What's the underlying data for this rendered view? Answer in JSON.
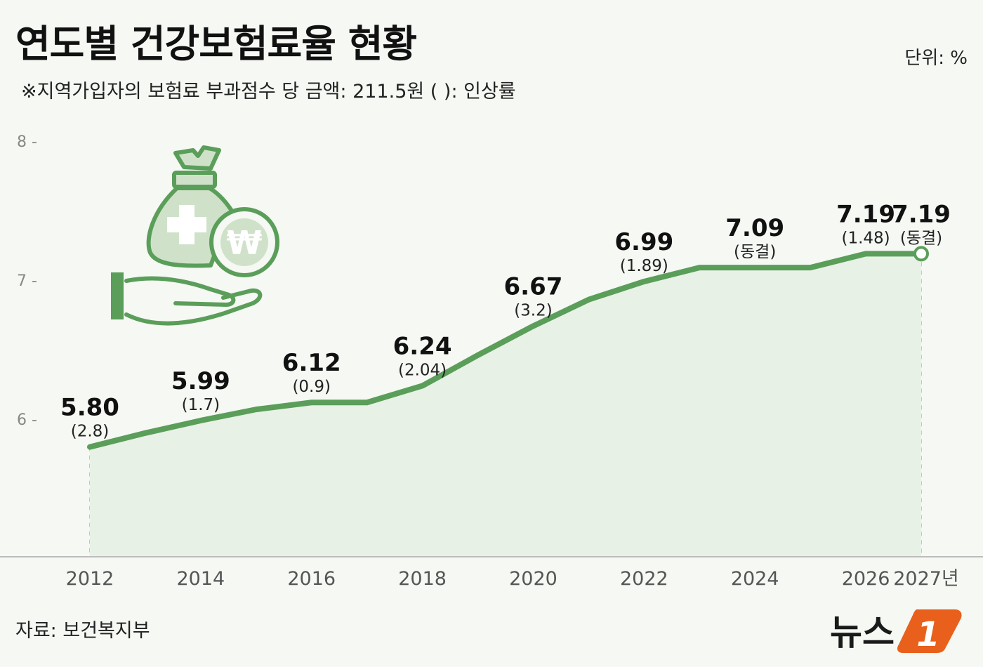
{
  "title": "연도별 건강보험료율 현황",
  "unit": "단위: %",
  "subtitle": "※지역가입자의 보험료 부과점수 당 금액: 211.5원  ( ): 인상률",
  "source": "자료: 보건복지부",
  "logo": {
    "text": "뉴스",
    "mark": "1"
  },
  "colors": {
    "line": "#5a9e5a",
    "fill": "#e8f1e6",
    "accent": "#e8601c"
  },
  "chart_data": {
    "type": "line",
    "title": "연도별 건강보험료율 현황",
    "ylim": [
      5.0,
      8.0
    ],
    "yticks": [
      6,
      7,
      8
    ],
    "ytick_labels": [
      "6 -",
      "7 -",
      "8 -"
    ],
    "x": [
      2012,
      2013,
      2014,
      2015,
      2016,
      2017,
      2018,
      2019,
      2020,
      2021,
      2022,
      2023,
      2024,
      2025,
      2026,
      2027
    ],
    "y": [
      5.8,
      5.9,
      5.99,
      6.07,
      6.12,
      6.12,
      6.24,
      6.46,
      6.67,
      6.86,
      6.99,
      7.09,
      7.09,
      7.09,
      7.19,
      7.19
    ],
    "xtick_years": [
      2012,
      2014,
      2016,
      2018,
      2020,
      2022,
      2024,
      2026,
      2027
    ],
    "xtick_labels": [
      "2012",
      "2014",
      "2016",
      "2018",
      "2020",
      "2022",
      "2024",
      "2026",
      "2027년"
    ],
    "labels": [
      {
        "x": 2012,
        "value": "5.80",
        "rate": "(2.8)"
      },
      {
        "x": 2014,
        "value": "5.99",
        "rate": "(1.7)"
      },
      {
        "x": 2016,
        "value": "6.12",
        "rate": "(0.9)"
      },
      {
        "x": 2018,
        "value": "6.24",
        "rate": "(2.04)"
      },
      {
        "x": 2020,
        "value": "6.67",
        "rate": "(3.2)"
      },
      {
        "x": 2022,
        "value": "6.99",
        "rate": "(1.89)"
      },
      {
        "x": 2024,
        "value": "7.09",
        "rate": "(동결)"
      },
      {
        "x": 2026,
        "value": "7.19",
        "rate": "(1.48)"
      },
      {
        "x": 2027,
        "value": "7.19",
        "rate": "(동결)"
      }
    ],
    "grid": "vertical-dashed",
    "legend": "none"
  }
}
